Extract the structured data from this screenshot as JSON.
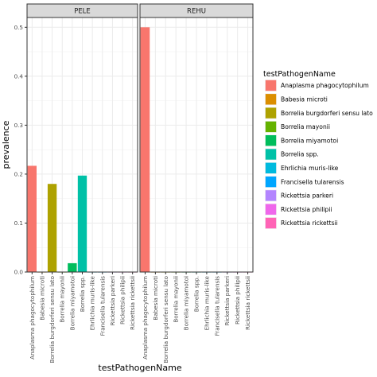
{
  "chart_data": {
    "type": "bar",
    "xlabel": "testPathogenName",
    "ylabel": "prevalence",
    "ylim": [
      0,
      0.52
    ],
    "y_ticks": [
      "0.0",
      "0.1",
      "0.2",
      "0.3",
      "0.4",
      "0.5"
    ],
    "grid": true,
    "legend_position": "right",
    "legend_title": "testPathogenName",
    "categories": [
      "Anaplasma phagocytophilum",
      "Babesia microti",
      "Borrelia burgdorferi sensu lato",
      "Borrelia mayonii",
      "Borrelia miyamotoi",
      "Borrelia spp.",
      "Ehrlichia muris-like",
      "Francisella tularensis",
      "Rickettsia parkeri",
      "Rickettsia philipii",
      "Rickettsia rickettsii"
    ],
    "colors": [
      "#F8766D",
      "#DB8E00",
      "#AEA200",
      "#64B200",
      "#00BD5C",
      "#00C1A7",
      "#00BADE",
      "#00A6FF",
      "#B385FF",
      "#EF67EB",
      "#FF63B6"
    ],
    "panels": [
      {
        "name": "PELE",
        "values": [
          0.217,
          0,
          0.18,
          0,
          0.018,
          0.197,
          0,
          0,
          0,
          0,
          0
        ]
      },
      {
        "name": "REHU",
        "values": [
          0.5,
          0,
          0,
          0,
          0,
          0,
          0,
          0,
          0,
          0,
          0
        ]
      }
    ]
  }
}
